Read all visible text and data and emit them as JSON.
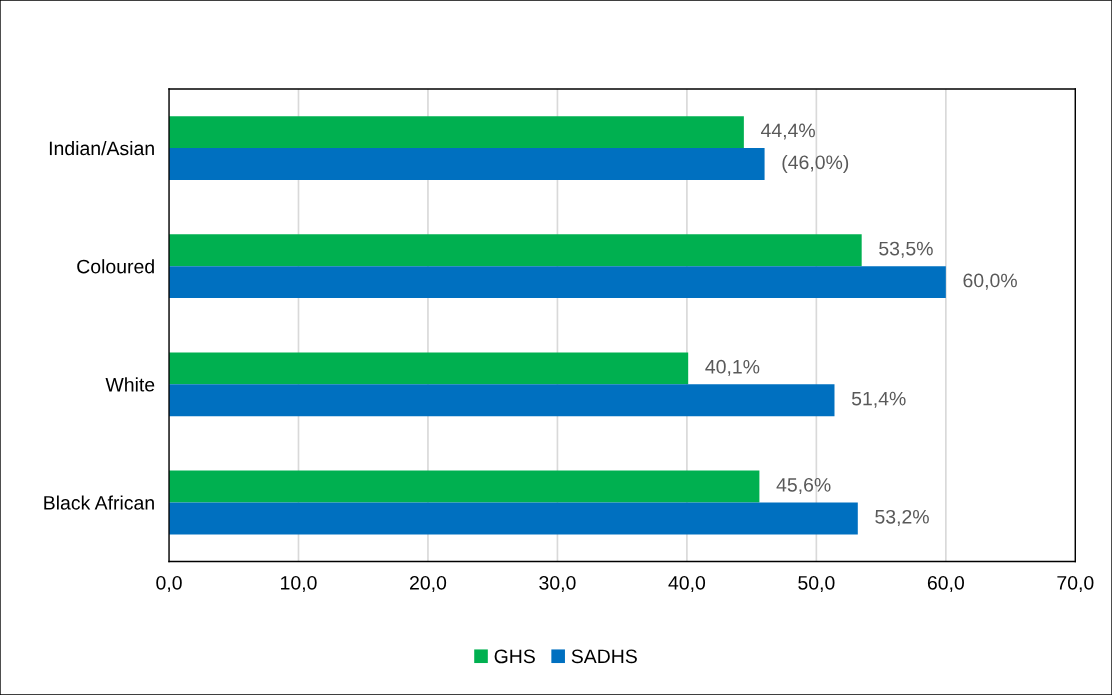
{
  "chart_data": {
    "type": "bar",
    "orientation": "horizontal",
    "categories": [
      "Indian/Asian",
      "Coloured",
      "White",
      "Black African"
    ],
    "series": [
      {
        "name": "GHS",
        "color": "#00b050",
        "values": [
          44.4,
          53.5,
          40.1,
          45.6
        ],
        "value_labels": [
          "44,4%",
          "53,5%",
          "40,1%",
          "45,6%"
        ]
      },
      {
        "name": "SADHS",
        "color": "#0070c0",
        "values": [
          46.0,
          60.0,
          51.4,
          53.2
        ],
        "value_labels": [
          "(46,0%)",
          "60,0%",
          "51,4%",
          "53,2%"
        ]
      }
    ],
    "xlim": [
      0,
      70
    ],
    "xticks": [
      {
        "value": 0,
        "label": "0,0"
      },
      {
        "value": 10,
        "label": "10,0"
      },
      {
        "value": 20,
        "label": "20,0"
      },
      {
        "value": 30,
        "label": "30,0"
      },
      {
        "value": 40,
        "label": "40,0"
      },
      {
        "value": 50,
        "label": "50,0"
      },
      {
        "value": 60,
        "label": "60,0"
      },
      {
        "value": 70,
        "label": "70,0"
      }
    ],
    "grid": "x",
    "legend": "bottom"
  }
}
